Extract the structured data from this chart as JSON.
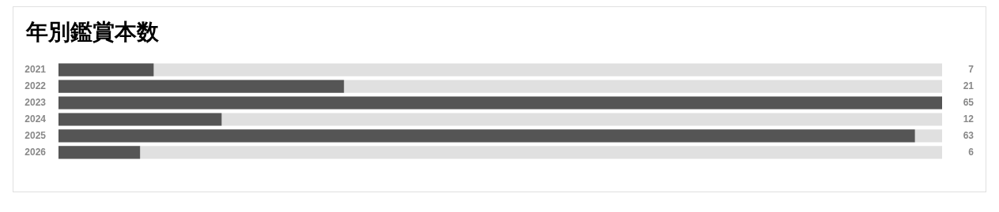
{
  "chart_data": {
    "type": "bar",
    "title": "年別鑑賞本数",
    "orientation": "horizontal",
    "categories": [
      "2021",
      "2022",
      "2023",
      "2024",
      "2025",
      "2026"
    ],
    "values": [
      7,
      21,
      65,
      12,
      63,
      6
    ],
    "color": "#555555",
    "data_labels": true,
    "legend": false,
    "tick_labels": "y"
  }
}
